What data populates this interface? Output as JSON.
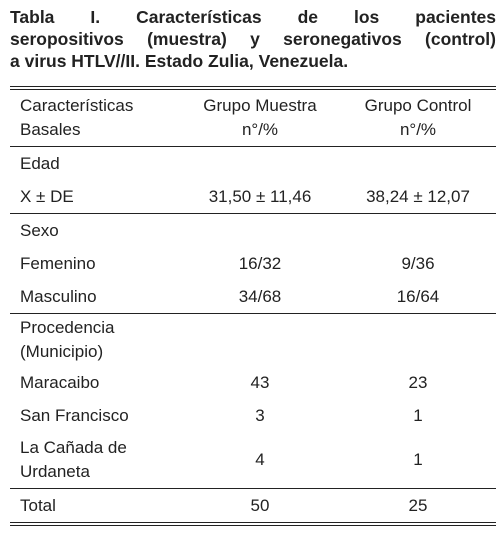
{
  "title": [
    "Tabla I. Características de los pacientes",
    "seropositivos (muestra) y seronegativos (control)",
    "a virus HTLV//II. Estado Zulia, Venezuela."
  ],
  "table": {
    "header": [
      [
        "Características",
        "Basales"
      ],
      [
        "Grupo Muestra",
        "n°/%"
      ],
      [
        "Grupo Control",
        "n°/%"
      ]
    ],
    "groups": [
      {
        "label": "Edad",
        "rows": [
          [
            "X ± DE",
            "31,50 ± 11,46",
            "38,24 ± 12,07"
          ]
        ]
      },
      {
        "label": "Sexo",
        "rows": [
          [
            "Femenino",
            "16/32",
            "9/36"
          ],
          [
            "Masculino",
            "34/68",
            "16/64"
          ]
        ]
      },
      {
        "label": "Procedencia (Municipio)",
        "rows": [
          [
            "Maracaibo",
            "43",
            "23"
          ],
          [
            "San Francisco",
            "3",
            "1"
          ],
          [
            "La Cañada de Urdaneta",
            "4",
            "1"
          ]
        ]
      },
      {
        "rows": [
          [
            "Total",
            "50",
            "25"
          ]
        ]
      }
    ]
  }
}
